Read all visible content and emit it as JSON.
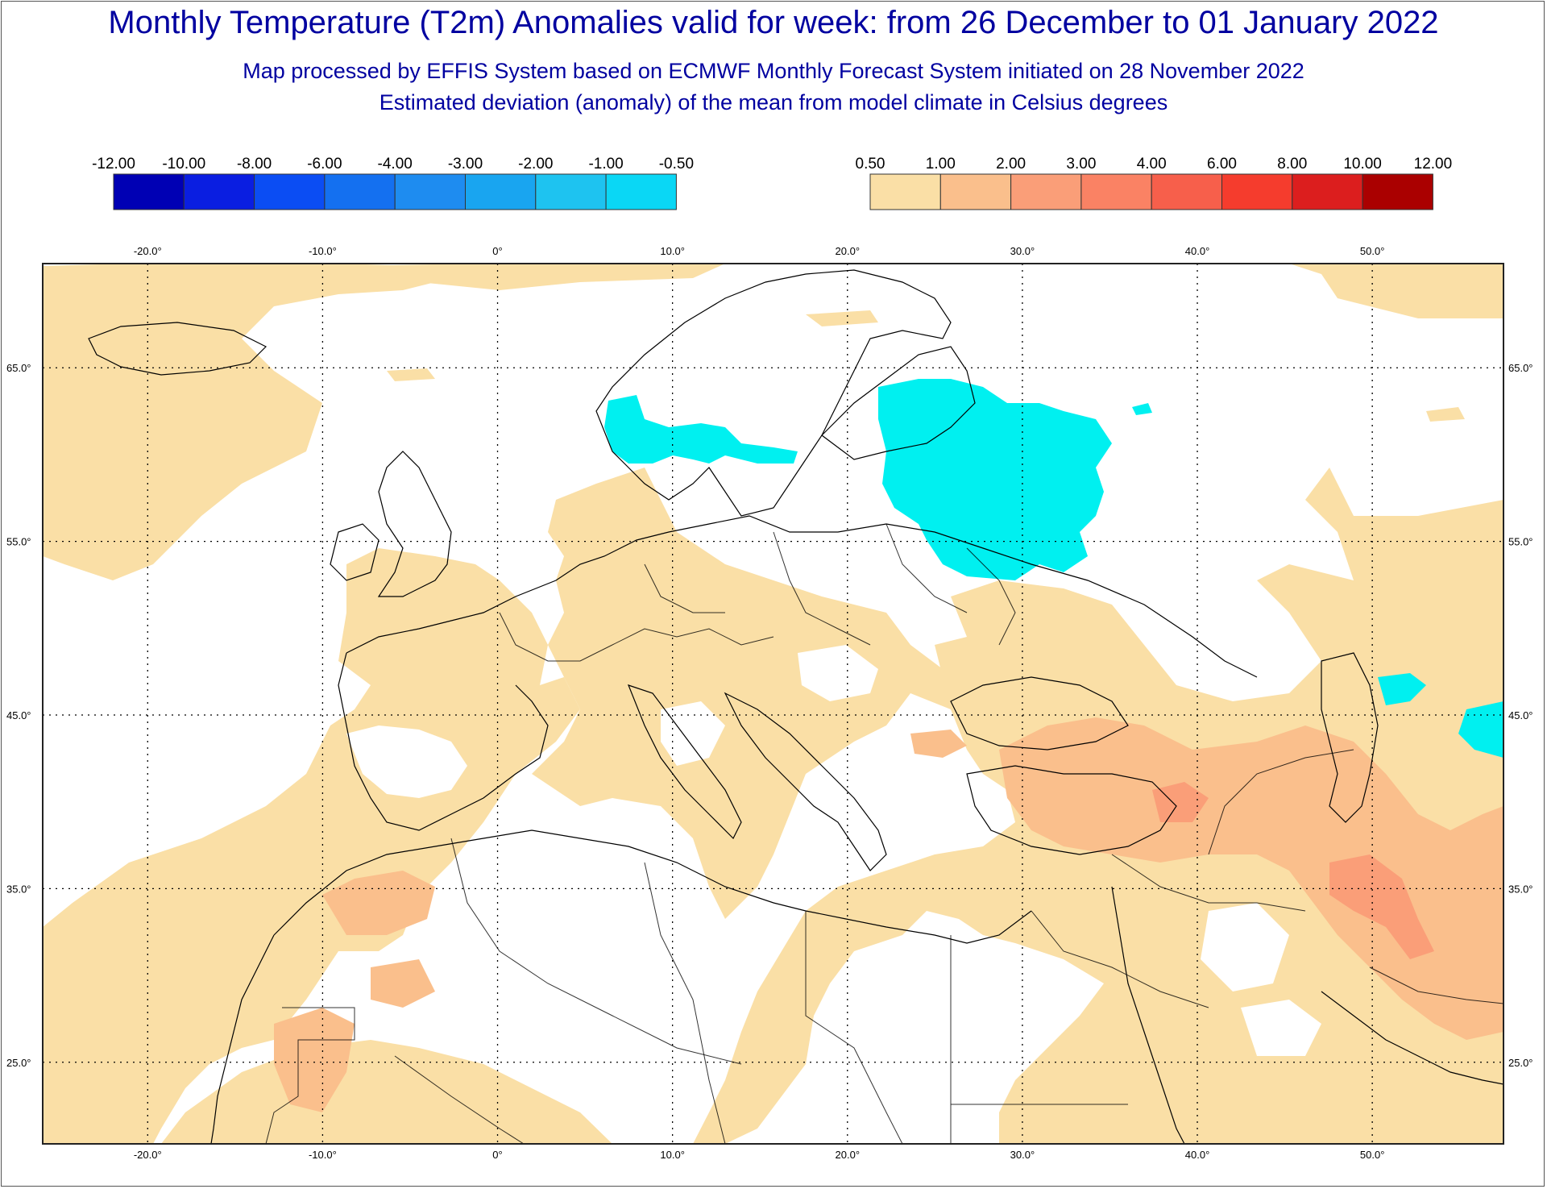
{
  "title": "Monthly Temperature (T2m) Anomalies valid for week: from 26 December to 01 January 2022",
  "subtitle_1": "Map processed by EFFIS System based on ECMWF Monthly Forecast System initiated on 28 November 2022",
  "subtitle_2": "Estimated deviation (anomaly) of the mean from model climate in Celsius degrees",
  "legend_cold": {
    "labels": [
      "-12.00",
      "-10.00",
      "-8.00",
      "-6.00",
      "-4.00",
      "-3.00",
      "-2.00",
      "-1.00",
      "-0.50"
    ],
    "colors": [
      "#0000b4",
      "#0a1ee1",
      "#0b4df3",
      "#1470f0",
      "#1e8cf0",
      "#19a5f0",
      "#1ec3f0",
      "#0ad7f5",
      "#00fafa"
    ]
  },
  "legend_warm": {
    "labels": [
      "0.50",
      "1.00",
      "2.00",
      "3.00",
      "4.00",
      "6.00",
      "8.00",
      "10.00",
      "12.00"
    ],
    "colors": [
      "#fadfa6",
      "#fabf8c",
      "#fa9e78",
      "#fa8264",
      "#f75f4b",
      "#f53c2d",
      "#dc1e1e",
      "#aa0000"
    ]
  },
  "map": {
    "lon_labels": [
      "-20.0°",
      "-10.0°",
      "0°",
      "10.0°",
      "20.0°",
      "30.0°",
      "40.0°",
      "50.0°"
    ],
    "lat_labels": [
      "65.0°",
      "55.0°",
      "45.0°",
      "35.0°",
      "25.0°"
    ],
    "lon_range": [
      -26,
      57.5
    ],
    "lat_range": [
      20.3,
      71
    ],
    "colors": {
      "anomaly_05_1": "#fadfa6",
      "anomaly_1_2": "#fabf8c",
      "anomaly_2_3": "#fa9e78",
      "anomaly_neg": "#00f0f0",
      "coastline": "#000000",
      "grid": "#000000"
    }
  }
}
